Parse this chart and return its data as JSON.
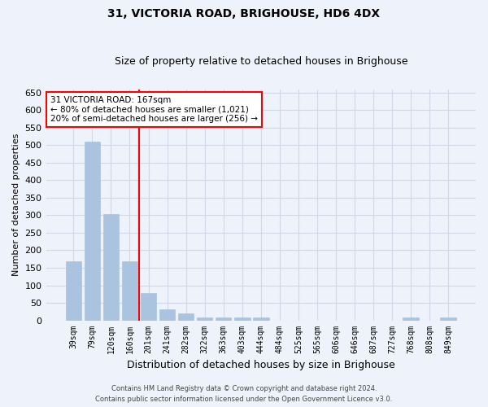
{
  "title": "31, VICTORIA ROAD, BRIGHOUSE, HD6 4DX",
  "subtitle": "Size of property relative to detached houses in Brighouse",
  "xlabel": "Distribution of detached houses by size in Brighouse",
  "ylabel": "Number of detached properties",
  "bar_labels": [
    "39sqm",
    "79sqm",
    "120sqm",
    "160sqm",
    "201sqm",
    "241sqm",
    "282sqm",
    "322sqm",
    "363sqm",
    "403sqm",
    "444sqm",
    "484sqm",
    "525sqm",
    "565sqm",
    "606sqm",
    "646sqm",
    "687sqm",
    "727sqm",
    "768sqm",
    "808sqm",
    "849sqm"
  ],
  "bar_values": [
    168,
    510,
    303,
    168,
    78,
    32,
    20,
    8,
    8,
    8,
    8,
    0,
    0,
    0,
    0,
    0,
    0,
    0,
    8,
    0,
    8
  ],
  "bar_color": "#aac4e0",
  "bar_edge_color": "#aac4e0",
  "grid_color": "#d0d8e8",
  "background_color": "#eef2fb",
  "vline_x_index": 3.5,
  "vline_color": "red",
  "annotation_line1": "31 VICTORIA ROAD: 167sqm",
  "annotation_line2": "← 80% of detached houses are smaller (1,021)",
  "annotation_line3": "20% of semi-detached houses are larger (256) →",
  "annotation_box_color": "white",
  "annotation_box_edge": "red",
  "ylim": [
    0,
    660
  ],
  "yticks": [
    0,
    50,
    100,
    150,
    200,
    250,
    300,
    350,
    400,
    450,
    500,
    550,
    600,
    650
  ],
  "footer_line1": "Contains HM Land Registry data © Crown copyright and database right 2024.",
  "footer_line2": "Contains public sector information licensed under the Open Government Licence v3.0.",
  "title_fontsize": 10,
  "subtitle_fontsize": 9,
  "ylabel_fontsize": 8,
  "xlabel_fontsize": 9,
  "ytick_fontsize": 8,
  "xtick_fontsize": 7
}
